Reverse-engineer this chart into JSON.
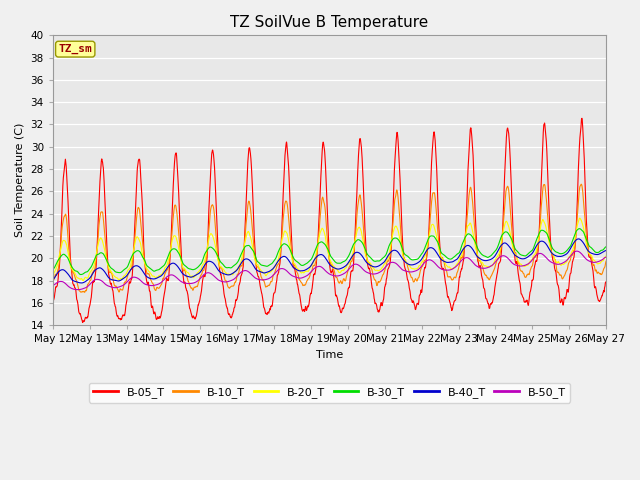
{
  "title": "TZ SoilVue B Temperature",
  "ylabel": "Soil Temperature (C)",
  "xlabel": "Time",
  "annotation": "TZ_sm",
  "ylim": [
    14,
    40
  ],
  "yticks": [
    14,
    16,
    18,
    20,
    22,
    24,
    26,
    28,
    30,
    32,
    34,
    36,
    38,
    40
  ],
  "series": [
    "B-05_T",
    "B-10_T",
    "B-20_T",
    "B-30_T",
    "B-40_T",
    "B-50_T"
  ],
  "colors": [
    "#ff0000",
    "#ff8800",
    "#ffff00",
    "#00dd00",
    "#0000cc",
    "#bb00bb"
  ],
  "plot_bg_color": "#e8e8e8",
  "n_days": 15,
  "xticklabels": [
    "May 12",
    "May 13",
    "May 14",
    "May 15",
    "May 16",
    "May 17",
    "May 18",
    "May 19",
    "May 20",
    "May 21",
    "May 22",
    "May 23",
    "May 24",
    "May 25",
    "May 26",
    "May 27"
  ],
  "title_fontsize": 11,
  "label_fontsize": 8,
  "tick_fontsize": 7.5,
  "annotation_fontsize": 8
}
